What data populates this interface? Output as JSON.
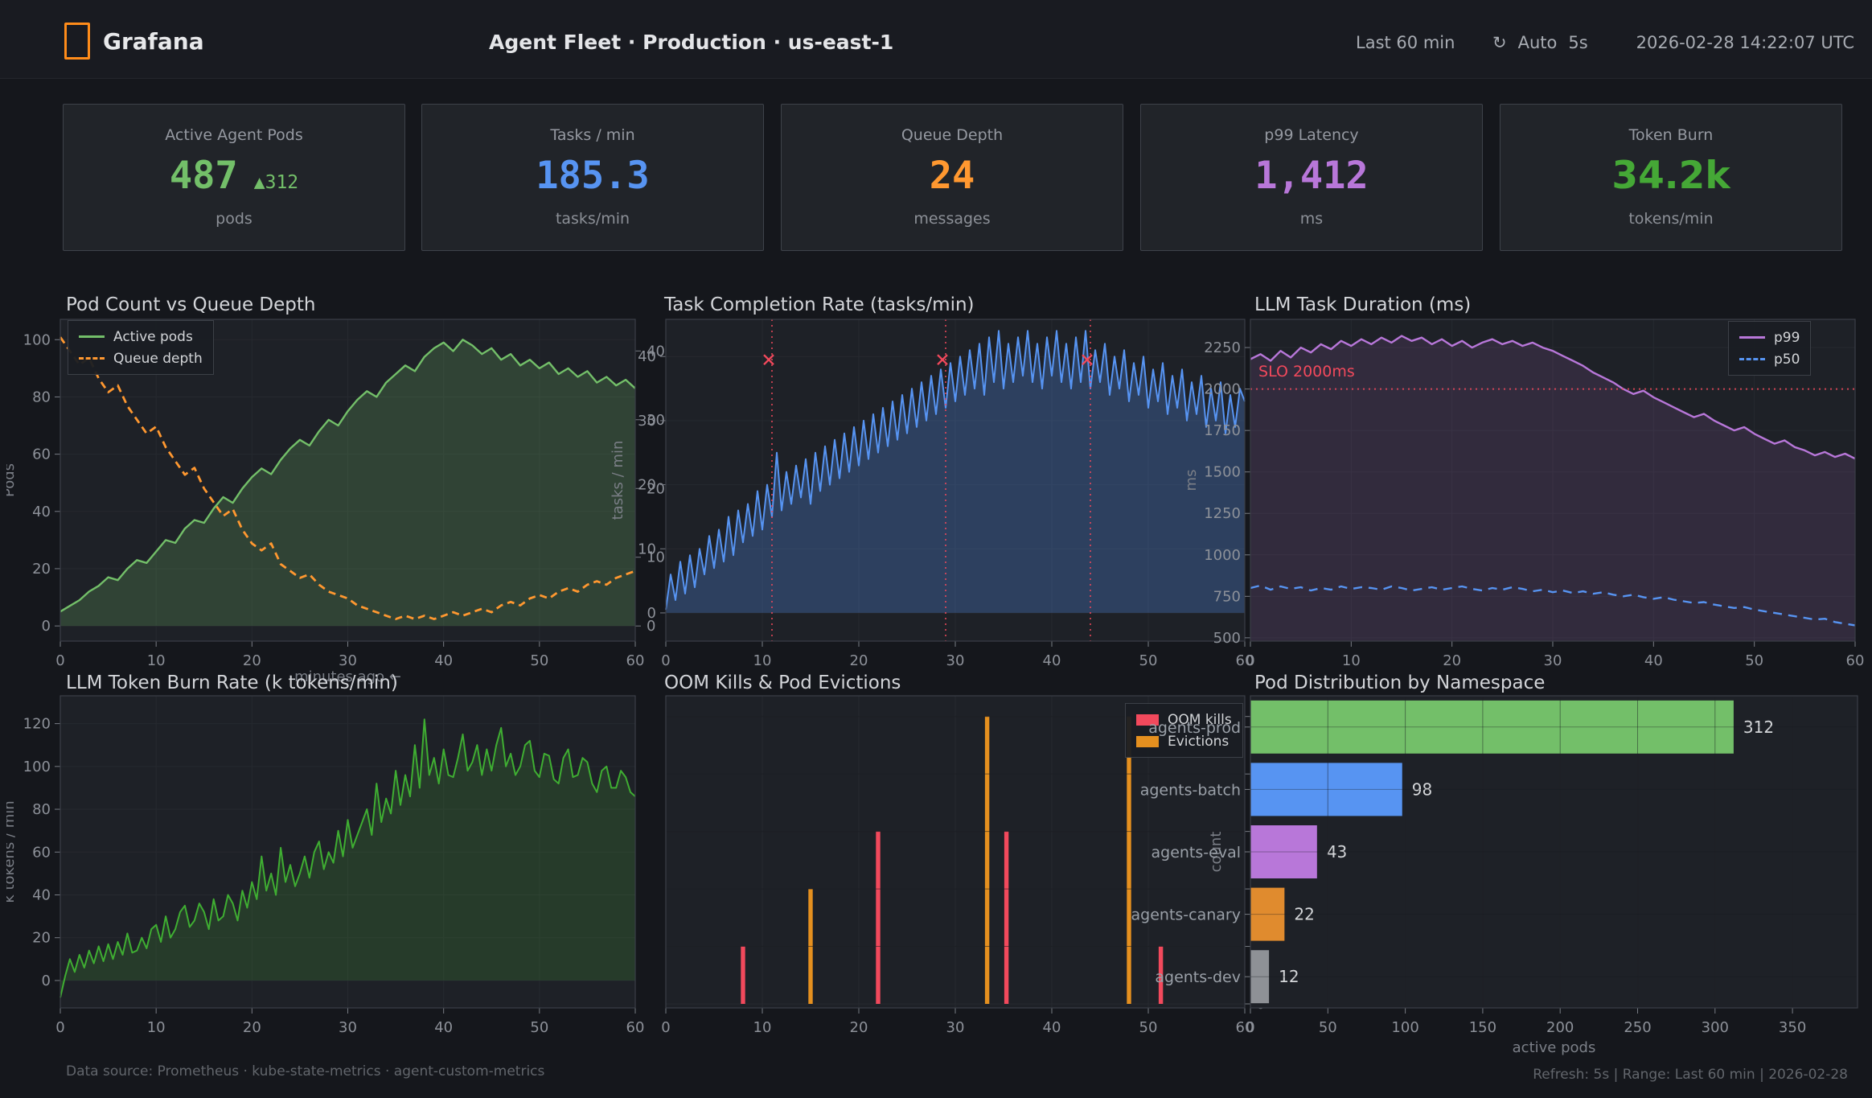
{
  "topbar": {
    "brand": "Grafana",
    "title": "Agent Fleet · Production · us-east-1",
    "time_range": "Last 60 min",
    "refresh_icon": "↻",
    "refresh_mode": "Auto",
    "refresh_interval": "5s",
    "timestamp": "2026-02-28  14:22:07 UTC"
  },
  "stats": [
    {
      "title": "Active Agent Pods",
      "value": "487",
      "delta_icon": "▲",
      "delta": "312",
      "unit": "pods",
      "color": "#73bf69",
      "delta_color": "#73bf69"
    },
    {
      "title": "Tasks / min",
      "value": "185.3",
      "unit": "tasks/min",
      "color": "#5794f2"
    },
    {
      "title": "Queue Depth",
      "value": "24",
      "unit": "messages",
      "color": "#ff9830"
    },
    {
      "title": "p99 Latency",
      "value": "1,412",
      "unit": "ms",
      "color": "#b877d9"
    },
    {
      "title": "Token Burn",
      "value": "34.2k",
      "unit": "tokens/min",
      "color": "#45a836"
    }
  ],
  "footer": {
    "left": "Data source: Prometheus · kube-state-metrics · agent-custom-metrics",
    "right": "Refresh: 5s  |  Range: Last 60 min  |  2026-02-28"
  },
  "chart_data": [
    {
      "type": "line",
      "title": "Pod Count vs Queue Depth",
      "xlabel": "minutes ago ←",
      "xlim": [
        0,
        60
      ],
      "xticks": [
        0,
        10,
        20,
        30,
        40,
        50,
        60
      ],
      "axes": {
        "left": {
          "label": "Pods",
          "lim": [
            -5.3,
            107.1
          ],
          "ticks": [
            0,
            20,
            40,
            60,
            80,
            100
          ],
          "grid": true,
          "label_offset": 58
        },
        "right": {
          "lim": [
            -2.2,
            44.6
          ],
          "ticks": [
            0,
            10,
            20,
            30,
            40
          ],
          "grid": false
        }
      },
      "series": [
        {
          "name": "Active pods",
          "color": "#73bf69",
          "axis": "left",
          "width": 2.4,
          "fill": "rgba(115,191,105,0.22)",
          "fill_to": 0,
          "values": [
            5,
            7,
            9,
            12,
            14,
            17,
            16,
            20,
            23,
            22,
            26,
            30,
            29,
            34,
            37,
            36,
            41,
            45,
            43,
            48,
            52,
            55,
            53,
            58,
            62,
            65,
            63,
            68,
            72,
            70,
            75,
            79,
            82,
            80,
            85,
            88,
            91,
            89,
            94,
            97,
            99,
            96,
            100,
            98,
            95,
            97,
            93,
            95,
            91,
            93,
            90,
            92,
            88,
            90,
            87,
            89,
            85,
            87,
            84,
            86,
            83
          ]
        },
        {
          "name": "Queue depth",
          "color": "#ff9830",
          "axis": "right",
          "width": 2.8,
          "dash": [
            9,
            6
          ],
          "values": [
            42,
            40,
            38,
            39,
            36,
            34,
            35,
            32,
            30,
            28,
            29,
            26,
            24,
            22,
            23,
            20,
            18,
            16,
            17,
            14,
            12,
            11,
            12,
            9,
            8,
            7,
            7.5,
            6,
            5,
            4.5,
            4,
            3,
            2.5,
            2,
            1.5,
            1,
            1.5,
            1,
            1.5,
            1,
            1.5,
            2,
            1.5,
            2,
            2.5,
            2,
            3,
            3.5,
            3,
            4,
            4.5,
            4,
            5,
            5.5,
            5,
            6,
            6.5,
            6,
            7,
            7.5,
            8
          ]
        }
      ]
    },
    {
      "type": "line",
      "title": "Task Completion Rate  (tasks/min)",
      "xlim": [
        0,
        60
      ],
      "xticks": [
        0,
        10,
        20,
        30,
        40,
        50,
        60
      ],
      "axes": {
        "left": {
          "label": "tasks / min",
          "lim": [
            -4.4,
            45.8
          ],
          "ticks": [
            0,
            10,
            20,
            30,
            40
          ],
          "grid": true,
          "label_offset": 54
        }
      },
      "series": [
        {
          "name": "Completed tasks",
          "color": "#5794f2",
          "axis": "left",
          "width": 2,
          "fill": "rgba(87,148,242,0.28)",
          "fill_to": 0,
          "values": [
            0.5,
            6,
            2,
            8,
            3,
            9,
            4,
            10,
            6,
            12,
            7,
            13,
            8,
            15,
            9,
            16,
            11,
            17,
            12,
            19,
            13,
            20,
            15,
            25,
            16,
            22,
            17,
            23,
            18,
            24,
            17,
            25,
            19,
            26,
            20,
            27,
            21,
            28,
            22,
            29,
            23,
            30,
            24,
            31,
            25,
            32,
            26,
            33,
            27,
            34,
            28,
            35,
            29,
            36,
            30,
            37,
            31,
            38,
            32,
            39,
            33,
            40,
            34,
            41,
            35,
            42,
            34,
            43,
            36,
            44,
            35,
            42,
            36,
            43,
            37,
            44,
            36,
            42,
            35,
            43,
            37,
            44,
            36,
            42,
            35,
            43,
            36,
            44,
            35,
            41,
            36,
            42,
            34,
            40,
            35,
            41,
            33,
            39,
            34,
            40,
            32,
            38,
            33,
            39,
            31,
            37,
            32,
            38,
            30,
            36,
            31,
            37,
            29,
            35,
            30,
            36,
            28,
            34,
            29,
            35,
            33
          ]
        }
      ],
      "deploy_vlines": {
        "x": [
          11,
          29,
          44
        ],
        "color": "#f2495c"
      },
      "deploy_markers": {
        "x": [
          11,
          29,
          44
        ],
        "y": 39.5,
        "symbol": "x",
        "color": "#f2495c"
      }
    },
    {
      "type": "line",
      "title": "LLM Task Duration  (ms)",
      "xlim": [
        0,
        60
      ],
      "xticks": [
        0,
        10,
        20,
        30,
        40,
        50,
        60
      ],
      "axes": {
        "left": {
          "label": "ms",
          "lim": [
            480,
            2420
          ],
          "ticks": [
            500,
            750,
            1000,
            1250,
            1500,
            1750,
            2000,
            2250
          ],
          "grid": true,
          "label_offset": 68
        }
      },
      "series": [
        {
          "name": "p99",
          "color": "#b877d9",
          "axis": "left",
          "width": 2.4,
          "fill": "rgba(184,119,217,0.13)",
          "fill_to": 480,
          "values": [
            2180,
            2210,
            2170,
            2230,
            2190,
            2250,
            2220,
            2270,
            2240,
            2290,
            2260,
            2300,
            2270,
            2310,
            2280,
            2320,
            2290,
            2310,
            2270,
            2300,
            2260,
            2290,
            2250,
            2280,
            2300,
            2270,
            2290,
            2260,
            2280,
            2250,
            2230,
            2200,
            2170,
            2140,
            2100,
            2070,
            2040,
            2000,
            1970,
            1990,
            1950,
            1920,
            1890,
            1860,
            1830,
            1850,
            1810,
            1780,
            1750,
            1770,
            1730,
            1700,
            1670,
            1690,
            1650,
            1630,
            1600,
            1620,
            1590,
            1610,
            1580
          ]
        },
        {
          "name": "p50",
          "color": "#5794f2",
          "axis": "left",
          "width": 2.4,
          "dash": [
            11,
            8
          ],
          "values": [
            800,
            815,
            790,
            810,
            795,
            805,
            785,
            800,
            790,
            810,
            795,
            805,
            800,
            790,
            810,
            800,
            785,
            795,
            805,
            790,
            800,
            810,
            795,
            785,
            800,
            790,
            805,
            795,
            780,
            790,
            775,
            785,
            770,
            780,
            765,
            775,
            760,
            750,
            760,
            745,
            735,
            745,
            730,
            720,
            710,
            715,
            700,
            690,
            680,
            685,
            670,
            660,
            650,
            640,
            630,
            620,
            610,
            615,
            595,
            585,
            575
          ]
        }
      ],
      "slo": {
        "y": 2000,
        "label": "SLO 2000ms",
        "label_x": 0.8,
        "label_y": 2075,
        "color": "#f2495c"
      }
    },
    {
      "type": "line",
      "title": "LLM Token Burn Rate  (k tokens/min)",
      "xlim": [
        0,
        60
      ],
      "xticks": [
        0,
        10,
        20,
        30,
        40,
        50,
        60
      ],
      "axes": {
        "left": {
          "label": "k tokens / min",
          "lim": [
            -12.8,
            133
          ],
          "ticks": [
            0,
            20,
            40,
            60,
            80,
            100,
            120
          ],
          "grid": true,
          "label_offset": 58
        }
      },
      "series": [
        {
          "name": "Token burn",
          "color": "#3fae32",
          "axis": "left",
          "width": 2,
          "fill": "rgba(76,175,62,0.18)",
          "fill_to": 0,
          "values": [
            -8,
            2,
            10,
            4,
            12,
            6,
            14,
            8,
            16,
            9,
            17,
            10,
            18,
            12,
            22,
            13,
            14,
            20,
            15,
            24,
            26,
            18,
            30,
            20,
            24,
            32,
            35,
            25,
            28,
            36,
            32,
            24,
            38,
            28,
            30,
            40,
            36,
            28,
            42,
            34,
            46,
            38,
            58,
            42,
            50,
            40,
            62,
            46,
            54,
            44,
            50,
            58,
            48,
            60,
            65,
            52,
            60,
            55,
            70,
            58,
            75,
            62,
            68,
            74,
            80,
            68,
            92,
            74,
            85,
            78,
            98,
            82,
            96,
            86,
            110,
            90,
            122,
            96,
            104,
            92,
            108,
            96,
            95,
            104,
            115,
            98,
            102,
            110,
            96,
            108,
            98,
            110,
            118,
            100,
            106,
            96,
            100,
            110,
            112,
            98,
            95,
            106,
            105,
            94,
            92,
            104,
            108,
            95,
            96,
            104,
            102,
            92,
            88,
            98,
            100,
            90,
            90,
            98,
            95,
            88,
            86
          ]
        }
      ]
    },
    {
      "type": "event_bars",
      "title": "OOM Kills & Pod Evictions",
      "xlim": [
        0,
        60
      ],
      "xticks": [
        0,
        10,
        20,
        30,
        40,
        50,
        60
      ],
      "axes": {
        "right": {
          "label": "count",
          "lim": [
            -0.07,
            5.36
          ],
          "ticks": [
            0,
            1,
            2,
            3,
            4,
            5
          ],
          "grid": true,
          "label_offset": -30
        }
      },
      "bar_width": 0.45,
      "series": [
        {
          "name": "OOM kills",
          "color": "#f2495c",
          "points": [
            {
              "x": 8,
              "y": 1
            },
            {
              "x": 22,
              "y": 3
            },
            {
              "x": 35.3,
              "y": 3
            },
            {
              "x": 51.3,
              "y": 1
            }
          ]
        },
        {
          "name": "Evictions",
          "color": "#e5901f",
          "points": [
            {
              "x": 15,
              "y": 2
            },
            {
              "x": 33.3,
              "y": 5
            },
            {
              "x": 48,
              "y": 5
            }
          ]
        }
      ]
    },
    {
      "type": "hbar",
      "title": "Pod Distribution by Namespace",
      "xlabel": "active pods",
      "xlim": [
        0,
        392
      ],
      "xticks": [
        0,
        50,
        100,
        150,
        200,
        250,
        300,
        350
      ],
      "categories": [
        "agents-prod",
        "agents-batch",
        "agents-eval",
        "agents-canary",
        "agents-dev"
      ],
      "values": [
        312,
        98,
        43,
        22,
        12
      ],
      "colors": [
        "#73bf69",
        "#5794f2",
        "#b877d9",
        "#e08b2e",
        "#8e9196"
      ],
      "value_label_color": "#d5d7da",
      "category_label_color": "#9aa0a8"
    }
  ]
}
